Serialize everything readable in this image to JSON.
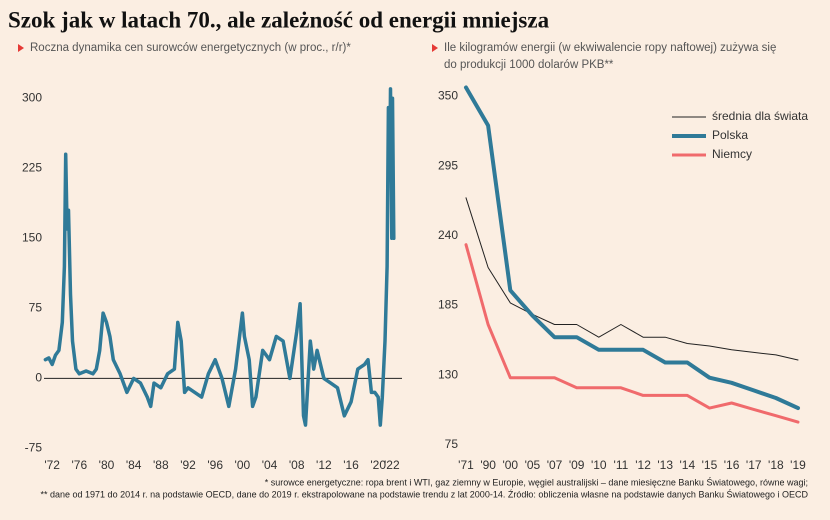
{
  "title": "Szok jak w latach 70., ale zależność od energii mniejsza",
  "footnotes": [
    "* surowce energetyczne: ropa brent i WTI, gaz ziemny w Europie, węgiel australijski – dane miesięczne Banku Światowego, równe wagi;",
    "** dane od 1971 do 2014 r. na podstawie OECD, dane do 2019 r. ekstrapolowane na podstawie trendu z lat 2000-14. Źródło: obliczenia własne na podstawie danych Banku Światowego i OECD"
  ],
  "chart_data": [
    {
      "type": "line",
      "subtitle": [
        "Roczna dynamika cen surowców energetycznych (w proc., r/r)*"
      ],
      "color": "#2f7a98",
      "x": [
        1971.0,
        1971.5,
        1972.0,
        1972.5,
        1973.0,
        1973.5,
        1973.8,
        1974.0,
        1974.2,
        1974.4,
        1974.7,
        1975.0,
        1975.5,
        1976.0,
        1977.0,
        1978.0,
        1978.5,
        1979.0,
        1979.5,
        1980.0,
        1980.5,
        1981.0,
        1982.0,
        1983.0,
        1984.0,
        1985.0,
        1986.0,
        1986.5,
        1987.0,
        1988.0,
        1989.0,
        1990.0,
        1990.5,
        1991.0,
        1991.5,
        1992.0,
        1993.0,
        1994.0,
        1995.0,
        1996.0,
        1997.0,
        1998.0,
        1999.0,
        2000.0,
        2000.3,
        2001.0,
        2001.5,
        2002.0,
        2003.0,
        2004.0,
        2005.0,
        2006.0,
        2007.0,
        2008.0,
        2008.5,
        2009.0,
        2009.3,
        2010.0,
        2010.5,
        2011.0,
        2012.0,
        2013.0,
        2014.0,
        2015.0,
        2016.0,
        2017.0,
        2018.0,
        2018.5,
        2019.0,
        2019.5,
        2020.0,
        2020.3,
        2020.6,
        2021.0,
        2021.3,
        2021.5,
        2021.7,
        2021.8,
        2022.0,
        2022.1,
        2022.3
      ],
      "values": [
        20,
        22,
        15,
        25,
        30,
        60,
        120,
        240,
        160,
        180,
        90,
        40,
        10,
        5,
        8,
        5,
        10,
        30,
        70,
        60,
        45,
        20,
        5,
        -15,
        0,
        -5,
        -20,
        -30,
        -5,
        -10,
        5,
        10,
        60,
        40,
        -15,
        -10,
        -15,
        -20,
        5,
        20,
        0,
        -30,
        10,
        70,
        45,
        20,
        -30,
        -20,
        30,
        20,
        45,
        40,
        0,
        50,
        80,
        -40,
        -50,
        40,
        10,
        30,
        0,
        -5,
        -10,
        -40,
        -25,
        10,
        15,
        20,
        -15,
        -15,
        -20,
        -50,
        -20,
        40,
        120,
        290,
        230,
        310,
        150,
        300,
        150
      ],
      "xlim": [
        1970.8,
        2023.5
      ],
      "xticks": [
        {
          "value": 1972,
          "label": "'72"
        },
        {
          "value": 1976,
          "label": "'76"
        },
        {
          "value": 1980,
          "label": "'80"
        },
        {
          "value": 1984,
          "label": "'84"
        },
        {
          "value": 1988,
          "label": "'88"
        },
        {
          "value": 1992,
          "label": "'92"
        },
        {
          "value": 1996,
          "label": "'96"
        },
        {
          "value": 2000,
          "label": "'00"
        },
        {
          "value": 2004,
          "label": "'04"
        },
        {
          "value": 2008,
          "label": "'08"
        },
        {
          "value": 2012,
          "label": "'12"
        },
        {
          "value": 2016,
          "label": "'16"
        },
        {
          "value": 2020,
          "label": "'20"
        },
        {
          "value": 2022,
          "label": "'22"
        }
      ],
      "ylim": [
        -82,
        311
      ],
      "yticks": [
        -75,
        0,
        75,
        150,
        225,
        300
      ]
    },
    {
      "type": "line",
      "subtitle": [
        "Ile kilogramów energii (w ekwiwalencie ropy naftowej) zużywa się",
        "do produkcji 1000 dolarów PKB**"
      ],
      "categories": [
        "'71",
        "'90",
        "'00",
        "'05",
        "'07",
        "'09",
        "'10",
        "'11",
        "'12",
        "'13",
        "'14",
        "'15",
        "'16",
        "'17",
        "'18",
        "'19"
      ],
      "series": [
        {
          "name": "średnia dla świata",
          "color": "#222222",
          "width": 1,
          "values": [
            270,
            215,
            187,
            178,
            170,
            170,
            160,
            170,
            160,
            160,
            155,
            153,
            150,
            148,
            146,
            142
          ]
        },
        {
          "name": "Polska",
          "color": "#2f7a98",
          "width": 4,
          "values": [
            357,
            327,
            197,
            177,
            160,
            160,
            150,
            150,
            150,
            140,
            140,
            128,
            124,
            118,
            112,
            104
          ]
        },
        {
          "name": "Niemcy",
          "color": "#f06a6c",
          "width": 3,
          "values": [
            233,
            170,
            128,
            128,
            128,
            120,
            120,
            120,
            114,
            114,
            114,
            104,
            108,
            103,
            98,
            93
          ]
        }
      ],
      "ylim": [
        67,
        359
      ],
      "yticks": [
        75,
        130,
        185,
        240,
        295,
        350
      ],
      "legend": "top-right"
    }
  ]
}
